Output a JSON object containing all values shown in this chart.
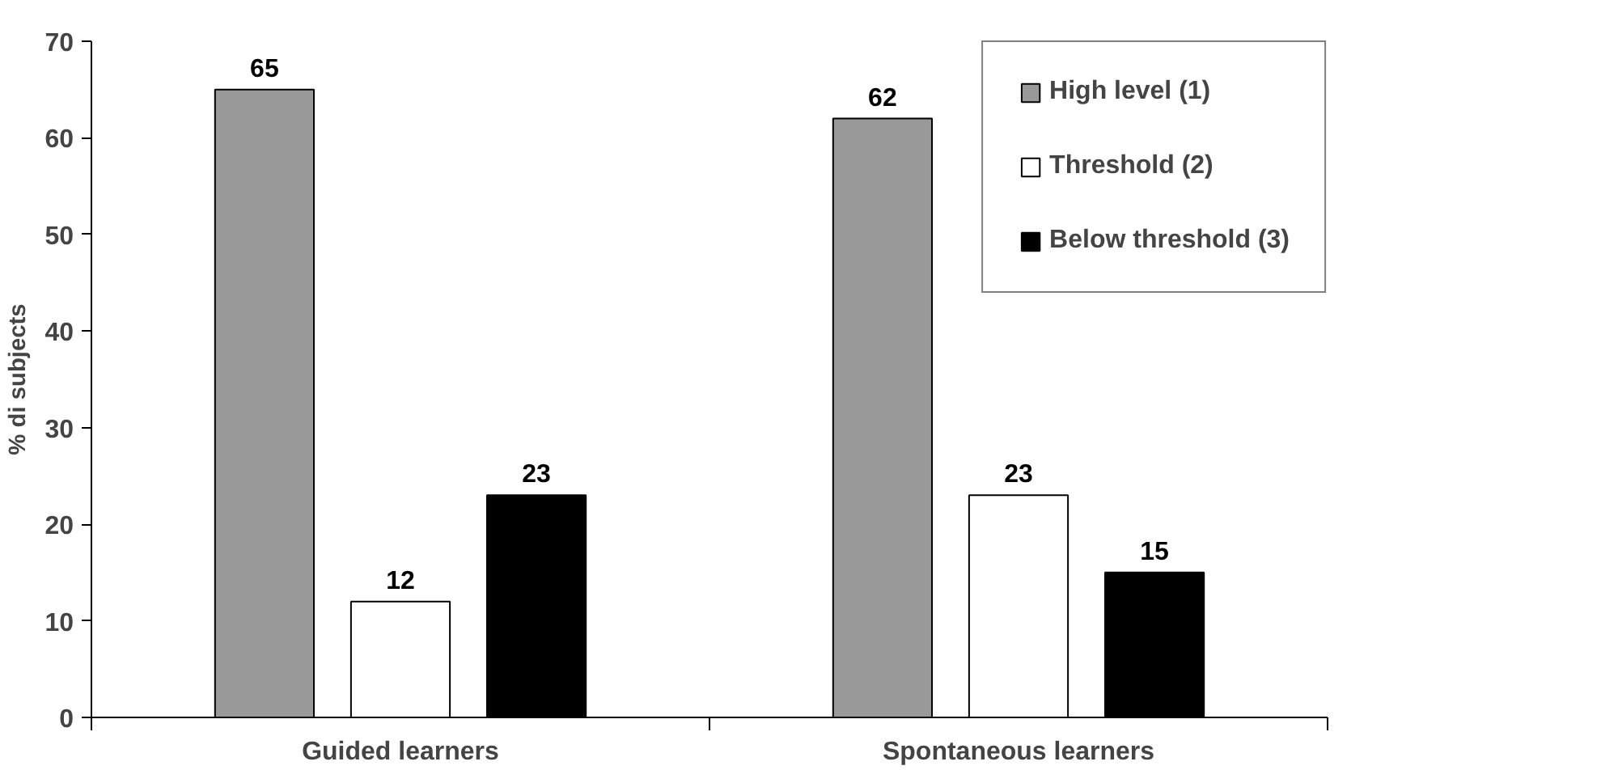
{
  "chart_data": {
    "type": "bar",
    "ylabel": "% di subjects",
    "categories": [
      "Guided learners",
      "Spontaneous learners"
    ],
    "series": [
      {
        "name": "High level (1)",
        "color": "#999999",
        "values": [
          65,
          62
        ]
      },
      {
        "name": "Threshold (2)",
        "color": "#ffffff",
        "values": [
          12,
          23
        ]
      },
      {
        "name": "Below threshold (3)",
        "color": "#000000",
        "values": [
          23,
          15
        ]
      }
    ],
    "ylim": [
      0,
      70
    ],
    "yticks": [
      0,
      10,
      20,
      30,
      40,
      50,
      60,
      70
    ],
    "grid": false,
    "legend": "top right",
    "data_labels": true
  }
}
